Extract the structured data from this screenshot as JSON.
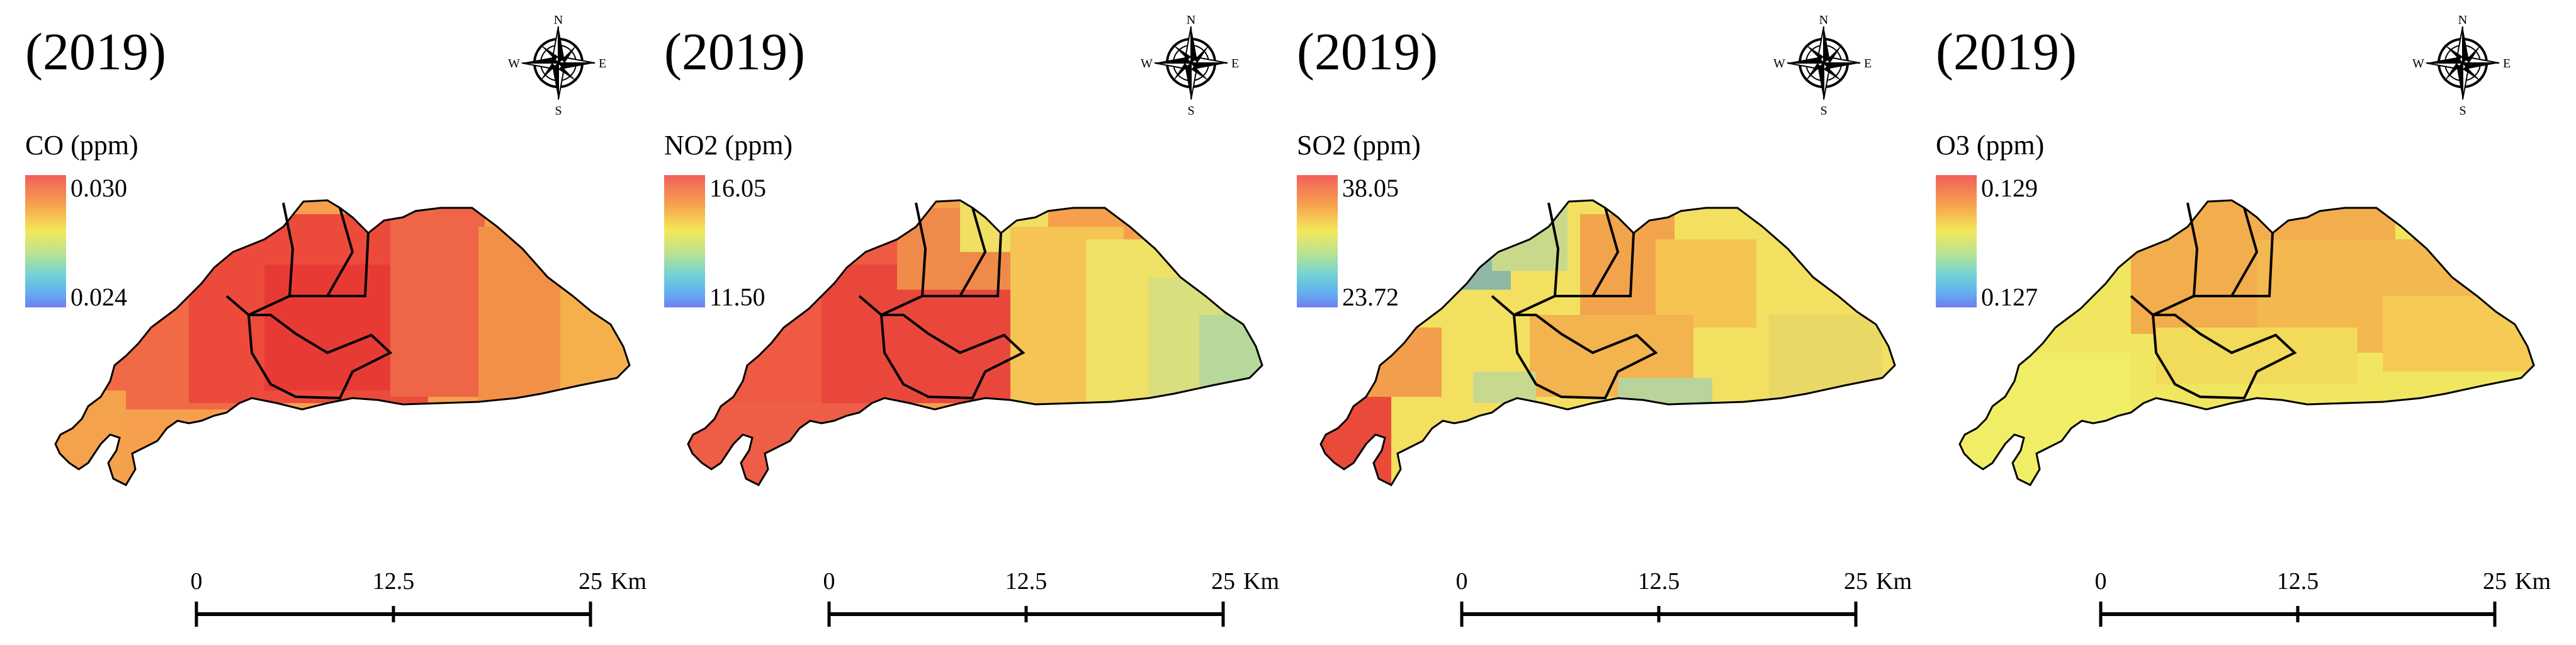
{
  "figure": {
    "panels": [
      {
        "id": "co",
        "year_label": "(2019)",
        "legend": {
          "title": "CO (ppm)",
          "max": "0.030",
          "min": "0.024"
        },
        "scalebar": {
          "ticks": [
            "0",
            "12.5",
            "25"
          ],
          "unit": "Km"
        },
        "compass": {
          "n": "N",
          "s": "S",
          "e": "E",
          "w": "W"
        }
      },
      {
        "id": "no2",
        "year_label": "(2019)",
        "legend": {
          "title": "NO2 (ppm)",
          "max": "16.05",
          "min": "11.50"
        },
        "scalebar": {
          "ticks": [
            "0",
            "12.5",
            "25"
          ],
          "unit": "Km"
        },
        "compass": {
          "n": "N",
          "s": "S",
          "e": "E",
          "w": "W"
        }
      },
      {
        "id": "so2",
        "year_label": "(2019)",
        "legend": {
          "title": "SO2 (ppm)",
          "max": "38.05",
          "min": "23.72"
        },
        "scalebar": {
          "ticks": [
            "0",
            "12.5",
            "25"
          ],
          "unit": "Km"
        },
        "compass": {
          "n": "N",
          "s": "S",
          "e": "E",
          "w": "W"
        }
      },
      {
        "id": "o3",
        "year_label": "(2019)",
        "legend": {
          "title": "O3 (ppm)",
          "max": "0.129",
          "min": "0.127"
        },
        "scalebar": {
          "ticks": [
            "0",
            "12.5",
            "25"
          ],
          "unit": "Km"
        },
        "compass": {
          "n": "N",
          "s": "S",
          "e": "E",
          "w": "W"
        }
      }
    ]
  },
  "colors": {
    "ramp": [
      "#f25f5c",
      "#f6a04d",
      "#f4e85a",
      "#bfe38d",
      "#76d6cf",
      "#62b3ef",
      "#6f7ff0"
    ],
    "outline": "#000000"
  }
}
